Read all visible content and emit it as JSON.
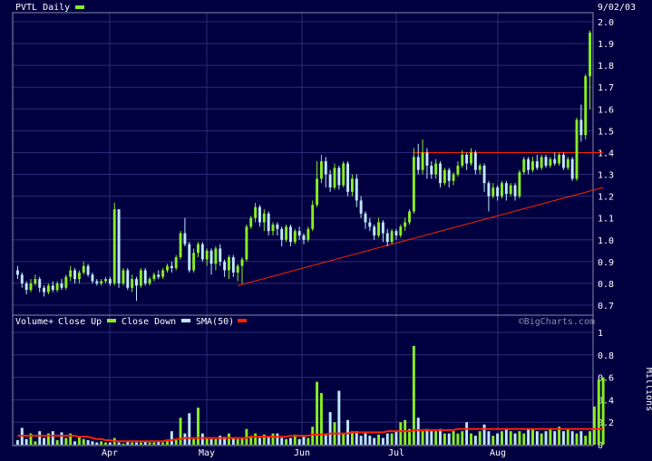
{
  "colors": {
    "background": "#000040",
    "frame": "#8a8aa8",
    "grid": "#2c2c78",
    "text": "#ffffff",
    "close_up": "#88ee22",
    "close_down": "#bfe8ff",
    "sma": "#ff2200",
    "trendline": "#ff2200"
  },
  "chart_data": [
    {
      "type": "candlestick",
      "title": "PVTL Daily",
      "date_label": "9/02/03",
      "xlabels": [
        "Apr",
        "May",
        "Jun",
        "Jul",
        "Aug"
      ],
      "ylim": [
        0.7,
        2.0
      ],
      "yticks": [
        "2.0",
        "1.9",
        "1.8",
        "1.7",
        "1.6",
        "1.5",
        "1.4",
        "1.3",
        "1.2",
        "1.1",
        "1.0",
        "0.9",
        "0.8",
        "0.7"
      ],
      "grid": true,
      "candles": [
        [
          0.86,
          0.84,
          0.88,
          0.82
        ],
        [
          0.84,
          0.8,
          0.85,
          0.78
        ],
        [
          0.8,
          0.77,
          0.81,
          0.75
        ],
        [
          0.77,
          0.8,
          0.82,
          0.76
        ],
        [
          0.8,
          0.82,
          0.84,
          0.79
        ],
        [
          0.82,
          0.78,
          0.83,
          0.76
        ],
        [
          0.78,
          0.76,
          0.79,
          0.74
        ],
        [
          0.76,
          0.79,
          0.8,
          0.75
        ],
        [
          0.79,
          0.77,
          0.81,
          0.76
        ],
        [
          0.77,
          0.8,
          0.81,
          0.76
        ],
        [
          0.8,
          0.78,
          0.82,
          0.77
        ],
        [
          0.78,
          0.83,
          0.84,
          0.77
        ],
        [
          0.83,
          0.86,
          0.88,
          0.81
        ],
        [
          0.86,
          0.82,
          0.87,
          0.8
        ],
        [
          0.82,
          0.85,
          0.86,
          0.8
        ],
        [
          0.85,
          0.88,
          0.9,
          0.84
        ],
        [
          0.88,
          0.84,
          0.89,
          0.83
        ],
        [
          0.84,
          0.81,
          0.85,
          0.8
        ],
        [
          0.81,
          0.8,
          0.82,
          0.79
        ],
        [
          0.8,
          0.81,
          0.82,
          0.79
        ],
        [
          0.81,
          0.82,
          0.83,
          0.8
        ],
        [
          0.82,
          0.8,
          0.83,
          0.79
        ],
        [
          0.8,
          1.14,
          1.17,
          0.79
        ],
        [
          1.14,
          0.8,
          1.14,
          0.78
        ],
        [
          0.8,
          0.86,
          0.87,
          0.79
        ],
        [
          0.86,
          0.78,
          0.87,
          0.77
        ],
        [
          0.78,
          0.82,
          0.84,
          0.76
        ],
        [
          0.82,
          0.79,
          0.83,
          0.72
        ],
        [
          0.79,
          0.86,
          0.87,
          0.78
        ],
        [
          0.86,
          0.8,
          0.87,
          0.79
        ],
        [
          0.8,
          0.82,
          0.83,
          0.79
        ],
        [
          0.82,
          0.84,
          0.85,
          0.81
        ],
        [
          0.84,
          0.83,
          0.86,
          0.82
        ],
        [
          0.83,
          0.86,
          0.87,
          0.82
        ],
        [
          0.86,
          0.88,
          0.89,
          0.85
        ],
        [
          0.88,
          0.87,
          0.9,
          0.85
        ],
        [
          0.87,
          0.92,
          0.93,
          0.86
        ],
        [
          0.92,
          1.03,
          1.04,
          0.91
        ],
        [
          1.03,
          0.98,
          1.1,
          0.97
        ],
        [
          0.98,
          0.86,
          0.99,
          0.85
        ],
        [
          0.86,
          0.94,
          0.96,
          0.85
        ],
        [
          0.94,
          0.98,
          0.99,
          0.92
        ],
        [
          0.98,
          0.91,
          0.99,
          0.9
        ],
        [
          0.91,
          0.95,
          0.96,
          0.88
        ],
        [
          0.95,
          0.89,
          0.96,
          0.84
        ],
        [
          0.89,
          0.96,
          0.97,
          0.86
        ],
        [
          0.96,
          0.9,
          0.98,
          0.88
        ],
        [
          0.9,
          0.86,
          0.91,
          0.83
        ],
        [
          0.86,
          0.92,
          0.93,
          0.82
        ],
        [
          0.92,
          0.85,
          0.93,
          0.83
        ],
        [
          0.85,
          0.88,
          0.89,
          0.81
        ],
        [
          0.88,
          0.91,
          0.92,
          0.8
        ],
        [
          0.91,
          1.06,
          1.07,
          0.9
        ],
        [
          1.06,
          1.1,
          1.11,
          1.05
        ],
        [
          1.1,
          1.15,
          1.17,
          1.08
        ],
        [
          1.15,
          1.08,
          1.16,
          1.06
        ],
        [
          1.08,
          1.12,
          1.14,
          1.04
        ],
        [
          1.12,
          1.04,
          1.13,
          1.02
        ],
        [
          1.04,
          1.07,
          1.08,
          1.02
        ],
        [
          1.07,
          1.05,
          1.08,
          1.02
        ],
        [
          1.05,
          1.0,
          1.06,
          0.97
        ],
        [
          1.0,
          1.06,
          1.07,
          0.99
        ],
        [
          1.06,
          0.99,
          1.07,
          0.97
        ],
        [
          0.99,
          1.04,
          1.05,
          0.98
        ],
        [
          1.04,
          1.02,
          1.06,
          1.0
        ],
        [
          1.02,
          1.0,
          1.03,
          0.98
        ],
        [
          1.0,
          1.05,
          1.06,
          0.99
        ],
        [
          1.05,
          1.16,
          1.18,
          1.04
        ],
        [
          1.16,
          1.28,
          1.36,
          1.15
        ],
        [
          1.28,
          1.36,
          1.39,
          1.26
        ],
        [
          1.36,
          1.3,
          1.38,
          1.24
        ],
        [
          1.3,
          1.24,
          1.32,
          1.22
        ],
        [
          1.24,
          1.33,
          1.35,
          1.23
        ],
        [
          1.33,
          1.25,
          1.34,
          1.23
        ],
        [
          1.25,
          1.35,
          1.36,
          1.24
        ],
        [
          1.35,
          1.22,
          1.36,
          1.2
        ],
        [
          1.22,
          1.28,
          1.3,
          1.2
        ],
        [
          1.28,
          1.18,
          1.3,
          1.15
        ],
        [
          1.18,
          1.12,
          1.2,
          1.1
        ],
        [
          1.12,
          1.08,
          1.13,
          1.05
        ],
        [
          1.08,
          1.06,
          1.1,
          1.04
        ],
        [
          1.06,
          1.02,
          1.07,
          1.0
        ],
        [
          1.02,
          1.08,
          1.1,
          1.01
        ],
        [
          1.08,
          1.03,
          1.09,
          0.99
        ],
        [
          1.03,
          0.99,
          1.05,
          0.97
        ],
        [
          0.99,
          1.04,
          1.05,
          0.98
        ],
        [
          1.04,
          1.02,
          1.05,
          1.0
        ],
        [
          1.02,
          1.06,
          1.07,
          1.01
        ],
        [
          1.06,
          1.08,
          1.1,
          1.04
        ],
        [
          1.08,
          1.13,
          1.14,
          1.07
        ],
        [
          1.13,
          1.38,
          1.42,
          1.12
        ],
        [
          1.38,
          1.32,
          1.44,
          1.3
        ],
        [
          1.32,
          1.4,
          1.46,
          1.3
        ],
        [
          1.4,
          1.34,
          1.42,
          1.28
        ],
        [
          1.34,
          1.3,
          1.36,
          1.28
        ],
        [
          1.3,
          1.35,
          1.37,
          1.28
        ],
        [
          1.35,
          1.26,
          1.36,
          1.24
        ],
        [
          1.26,
          1.32,
          1.33,
          1.25
        ],
        [
          1.32,
          1.27,
          1.33,
          1.24
        ],
        [
          1.27,
          1.3,
          1.31,
          1.25
        ],
        [
          1.3,
          1.34,
          1.36,
          1.29
        ],
        [
          1.34,
          1.39,
          1.41,
          1.33
        ],
        [
          1.39,
          1.35,
          1.4,
          1.32
        ],
        [
          1.35,
          1.4,
          1.42,
          1.34
        ],
        [
          1.4,
          1.32,
          1.41,
          1.3
        ],
        [
          1.32,
          1.34,
          1.35,
          1.3
        ],
        [
          1.34,
          1.26,
          1.35,
          1.22
        ],
        [
          1.26,
          1.2,
          1.27,
          1.13
        ],
        [
          1.2,
          1.24,
          1.26,
          1.19
        ],
        [
          1.24,
          1.2,
          1.25,
          1.18
        ],
        [
          1.2,
          1.26,
          1.27,
          1.19
        ],
        [
          1.26,
          1.21,
          1.27,
          1.18
        ],
        [
          1.21,
          1.25,
          1.26,
          1.2
        ],
        [
          1.25,
          1.2,
          1.26,
          1.18
        ],
        [
          1.2,
          1.31,
          1.32,
          1.19
        ],
        [
          1.31,
          1.37,
          1.38,
          1.3
        ],
        [
          1.37,
          1.32,
          1.38,
          1.3
        ],
        [
          1.32,
          1.36,
          1.38,
          1.31
        ],
        [
          1.36,
          1.33,
          1.39,
          1.32
        ],
        [
          1.33,
          1.38,
          1.39,
          1.32
        ],
        [
          1.38,
          1.34,
          1.39,
          1.33
        ],
        [
          1.34,
          1.37,
          1.38,
          1.33
        ],
        [
          1.37,
          1.35,
          1.4,
          1.34
        ],
        [
          1.35,
          1.39,
          1.4,
          1.34
        ],
        [
          1.39,
          1.33,
          1.4,
          1.32
        ],
        [
          1.33,
          1.37,
          1.38,
          1.32
        ],
        [
          1.37,
          1.28,
          1.38,
          1.27
        ],
        [
          1.28,
          1.55,
          1.56,
          1.27
        ],
        [
          1.55,
          1.48,
          1.62,
          1.45
        ],
        [
          1.48,
          1.75,
          1.76,
          1.46
        ],
        [
          1.75,
          1.95,
          1.96,
          1.6
        ]
      ],
      "reference_lines": [
        {
          "name": "resistance",
          "from": [
            90,
            1.4
          ],
          "to": [
            133,
            1.4
          ]
        },
        {
          "name": "support",
          "from": [
            50,
            0.79
          ],
          "to": [
            133,
            1.24
          ]
        }
      ]
    },
    {
      "type": "bar",
      "legend": [
        {
          "label": "Volume+",
          "text_only": true
        },
        {
          "label": "Close Up",
          "series": "close_up"
        },
        {
          "label": "Close Down",
          "series": "close_down"
        },
        {
          "label": "SMA(50)",
          "series": "sma"
        }
      ],
      "watermark": "©BigCharts.com",
      "ylim": [
        0,
        1
      ],
      "yticks": [
        "1",
        "0.8",
        "0.6",
        "0.4",
        "0.2",
        "0"
      ],
      "ylabel": "Millions",
      "grid": true,
      "volumes": [
        0.04,
        0.15,
        0.05,
        0.1,
        0.03,
        0.12,
        0.06,
        0.1,
        0.12,
        0.04,
        0.11,
        0.06,
        0.1,
        0.03,
        0.07,
        0.05,
        0.04,
        0.03,
        0.02,
        0.03,
        0.02,
        0.02,
        0.06,
        0.02,
        0.01,
        0.03,
        0.02,
        0.02,
        0.02,
        0.03,
        0.02,
        0.02,
        0.03,
        0.02,
        0.03,
        0.12,
        0.04,
        0.24,
        0.1,
        0.28,
        0.05,
        0.33,
        0.1,
        0.06,
        0.05,
        0.05,
        0.08,
        0.07,
        0.1,
        0.06,
        0.05,
        0.06,
        0.14,
        0.08,
        0.1,
        0.06,
        0.09,
        0.07,
        0.1,
        0.1,
        0.06,
        0.05,
        0.06,
        0.09,
        0.05,
        0.07,
        0.06,
        0.16,
        0.56,
        0.46,
        0.1,
        0.29,
        0.2,
        0.48,
        0.1,
        0.22,
        0.12,
        0.12,
        0.08,
        0.1,
        0.08,
        0.06,
        0.09,
        0.06,
        0.1,
        0.1,
        0.12,
        0.2,
        0.22,
        0.14,
        0.88,
        0.24,
        0.12,
        0.14,
        0.12,
        0.12,
        0.14,
        0.1,
        0.1,
        0.12,
        0.1,
        0.12,
        0.2,
        0.1,
        0.08,
        0.12,
        0.18,
        0.12,
        0.08,
        0.1,
        0.12,
        0.14,
        0.12,
        0.1,
        0.12,
        0.1,
        0.14,
        0.14,
        0.12,
        0.1,
        0.12,
        0.14,
        0.12,
        0.16,
        0.12,
        0.14,
        0.12,
        0.1,
        0.12,
        0.08,
        0.12,
        0.34,
        0.58,
        0.6
      ],
      "sma": [
        0.08,
        0.08,
        0.08,
        0.08,
        0.08,
        0.08,
        0.08,
        0.08,
        0.08,
        0.08,
        0.08,
        0.08,
        0.08,
        0.08,
        0.07,
        0.07,
        0.07,
        0.06,
        0.05,
        0.05,
        0.04,
        0.04,
        0.03,
        0.03,
        0.03,
        0.03,
        0.03,
        0.03,
        0.03,
        0.03,
        0.03,
        0.03,
        0.03,
        0.03,
        0.04,
        0.04,
        0.05,
        0.05,
        0.06,
        0.06,
        0.06,
        0.06,
        0.06,
        0.06,
        0.06,
        0.06,
        0.06,
        0.06,
        0.06,
        0.06,
        0.06,
        0.06,
        0.06,
        0.07,
        0.07,
        0.07,
        0.07,
        0.07,
        0.07,
        0.07,
        0.07,
        0.07,
        0.08,
        0.08,
        0.08,
        0.08,
        0.08,
        0.09,
        0.09,
        0.09,
        0.09,
        0.1,
        0.1,
        0.1,
        0.1,
        0.1,
        0.11,
        0.11,
        0.11,
        0.11,
        0.11,
        0.11,
        0.11,
        0.11,
        0.12,
        0.12,
        0.12,
        0.12,
        0.12,
        0.12,
        0.13,
        0.13,
        0.13,
        0.13,
        0.13,
        0.13,
        0.13,
        0.13,
        0.13,
        0.13,
        0.14,
        0.14,
        0.14,
        0.14,
        0.14,
        0.14,
        0.14,
        0.14,
        0.14,
        0.14,
        0.14,
        0.14,
        0.14,
        0.14,
        0.14,
        0.14,
        0.14,
        0.14,
        0.14,
        0.14,
        0.14,
        0.14,
        0.14,
        0.14,
        0.14,
        0.14,
        0.14,
        0.14,
        0.14,
        0.14,
        0.14,
        0.14,
        0.14,
        0.14
      ]
    }
  ]
}
